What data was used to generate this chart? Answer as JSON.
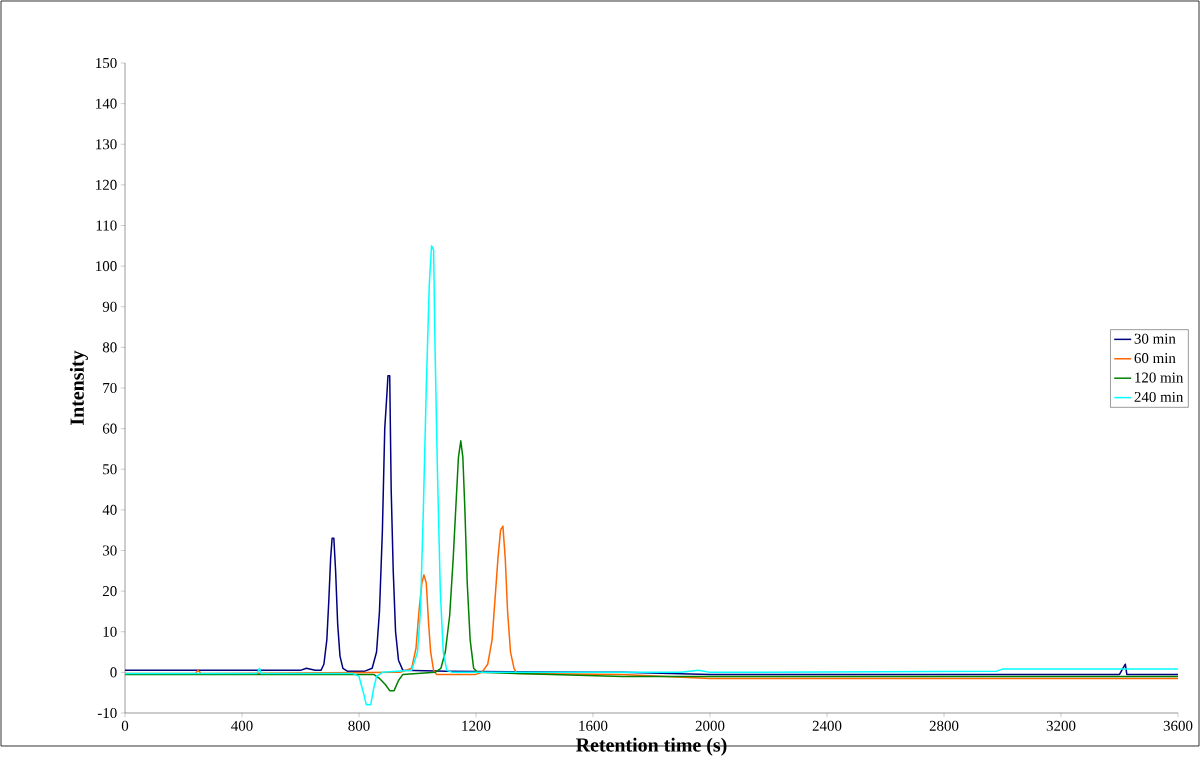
{
  "chart_data": {
    "type": "line",
    "xlabel": "Retention time (s)",
    "ylabel": "Intensity",
    "xlim": [
      0,
      3600
    ],
    "xticks": [
      0,
      400,
      800,
      1200,
      1600,
      2000,
      2400,
      2800,
      3200,
      3600
    ],
    "ylim": [
      -10,
      150
    ],
    "yticks": [
      -10,
      0,
      10,
      20,
      30,
      40,
      50,
      60,
      70,
      80,
      90,
      100,
      110,
      120,
      130,
      140,
      150
    ],
    "grid": false,
    "legend": "right",
    "marker": "none",
    "line_style": "solid",
    "series": [
      {
        "name": "30 min",
        "color": "#000080",
        "x": [
          0,
          600,
          620,
          650,
          670,
          680,
          690,
          697,
          703,
          708,
          714,
          720,
          727,
          735,
          745,
          760,
          820,
          845,
          860,
          870,
          880,
          888,
          895,
          899,
          905,
          910,
          917,
          925,
          935,
          950,
          1100,
          1600,
          1700,
          2000,
          3400,
          3420,
          3425,
          3600
        ],
        "values": [
          0.5,
          0.5,
          1,
          0.5,
          0.5,
          2,
          8,
          18,
          28,
          33,
          33,
          25,
          12,
          4,
          1,
          0.3,
          0.3,
          1,
          5,
          15,
          35,
          60,
          68,
          73,
          73,
          45,
          25,
          10,
          3,
          0.5,
          0.3,
          0,
          0,
          -0.5,
          -0.5,
          2,
          -0.5,
          -0.5
        ]
      },
      {
        "name": "60 min",
        "color": "#ff6600",
        "x": [
          0,
          240,
          250,
          260,
          940,
          980,
          995,
          1005,
          1015,
          1022,
          1030,
          1038,
          1045,
          1055,
          1065,
          1200,
          1220,
          1240,
          1255,
          1265,
          1275,
          1284,
          1292,
          1300,
          1308,
          1318,
          1330,
          1340,
          1700,
          2000,
          2400,
          2800,
          3000,
          3200,
          3600
        ],
        "values": [
          -0.3,
          -0.3,
          0.5,
          -0.3,
          0,
          1,
          6,
          15,
          22,
          24,
          22,
          12,
          5,
          0.5,
          -0.5,
          -0.5,
          0,
          2,
          8,
          18,
          28,
          35,
          36,
          28,
          15,
          5,
          1,
          -0.3,
          -0.5,
          -1.5,
          -1.5,
          -1.5,
          -1.5,
          -1.5,
          -1.5
        ]
      },
      {
        "name": "120 min",
        "color": "#008000",
        "x": [
          0,
          850,
          870,
          890,
          905,
          920,
          935,
          950,
          1060,
          1080,
          1095,
          1110,
          1122,
          1132,
          1140,
          1148,
          1155,
          1162,
          1170,
          1180,
          1192,
          1205,
          1700,
          2000,
          3000,
          3600
        ],
        "values": [
          -0.5,
          -0.5,
          -1.5,
          -3,
          -4.5,
          -4.5,
          -2,
          -0.5,
          0,
          1,
          5,
          14,
          28,
          42,
          53,
          57,
          53,
          40,
          22,
          8,
          1,
          0,
          -1,
          -1,
          -1,
          -1
        ]
      },
      {
        "name": "240 min",
        "color": "#00ffff",
        "x": [
          0,
          450,
          460,
          465,
          780,
          800,
          815,
          825,
          840,
          850,
          860,
          880,
          980,
          1000,
          1010,
          1020,
          1030,
          1040,
          1048,
          1055,
          1060,
          1068,
          1078,
          1088,
          1100,
          1120,
          1900,
          1960,
          2000,
          2980,
          3000,
          3600
        ],
        "values": [
          -0.3,
          -0.3,
          1,
          -0.3,
          -0.3,
          -1,
          -5,
          -8,
          -8,
          -4,
          -1,
          0,
          0.5,
          5,
          15,
          40,
          70,
          95,
          105,
          104,
          80,
          50,
          20,
          5,
          0.5,
          0,
          0,
          0.5,
          0,
          0.3,
          0.8,
          0.8
        ]
      }
    ]
  }
}
